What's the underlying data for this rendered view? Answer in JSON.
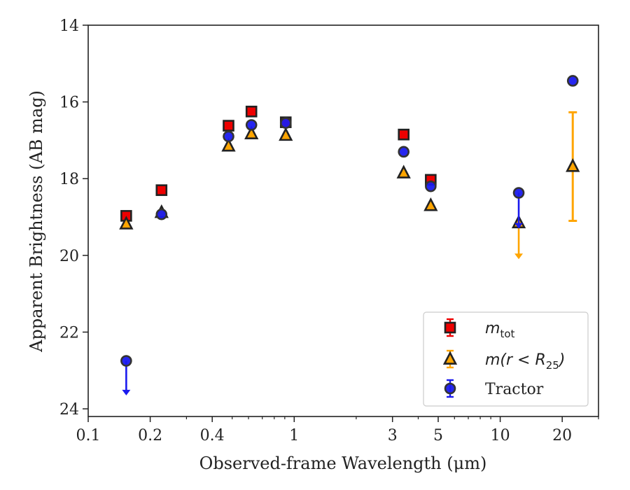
{
  "chart_data": {
    "type": "scatter",
    "title": "",
    "xlabel": "Observed-frame Wavelength (μm)",
    "ylabel": "Apparent Brightness (AB mag)",
    "xscale": "log",
    "xlim": [
      0.1,
      30
    ],
    "ylim": [
      24.2,
      14
    ],
    "y_inverted": true,
    "x_ticks": [
      0.1,
      0.2,
      0.4,
      1,
      3,
      5,
      10,
      20
    ],
    "x_tick_labels": [
      "0.1",
      "0.2",
      "0.4",
      "1",
      "3",
      "5",
      "10",
      "20"
    ],
    "y_ticks": [
      14,
      16,
      18,
      20,
      22,
      24
    ],
    "y_tick_labels": [
      "14",
      "16",
      "18",
      "20",
      "22",
      "24"
    ],
    "grid": false,
    "legend_position": "lower-right",
    "series": [
      {
        "name": "m_tot",
        "label_main": "m",
        "label_sub": "tot",
        "marker": "square",
        "color": "#ee0000",
        "edge_color": "#222222",
        "points": [
          {
            "x": 0.153,
            "y": 18.97
          },
          {
            "x": 0.227,
            "y": 18.3
          },
          {
            "x": 0.48,
            "y": 16.62
          },
          {
            "x": 0.62,
            "y": 16.25
          },
          {
            "x": 0.91,
            "y": 16.53
          },
          {
            "x": 3.4,
            "y": 16.85
          },
          {
            "x": 4.6,
            "y": 18.03
          }
        ]
      },
      {
        "name": "m(r < R25)",
        "label_main": "m(r < R",
        "label_sub": "25",
        "label_tail": ")",
        "marker": "triangle",
        "color": "#ffa500",
        "edge_color": "#222222",
        "points": [
          {
            "x": 0.153,
            "y": 19.18
          },
          {
            "x": 0.227,
            "y": 18.88
          },
          {
            "x": 0.48,
            "y": 17.15
          },
          {
            "x": 0.62,
            "y": 16.83
          },
          {
            "x": 0.91,
            "y": 16.87
          },
          {
            "x": 3.4,
            "y": 17.85
          },
          {
            "x": 4.6,
            "y": 18.7
          },
          {
            "x": 12.3,
            "y": 19.15,
            "upper_limit_to": 20.1
          },
          {
            "x": 22.5,
            "y": 17.68,
            "err_low": 16.27,
            "err_high": 19.1
          }
        ]
      },
      {
        "name": "Tractor",
        "label_main": "Tractor",
        "marker": "circle",
        "color": "#1a1aee",
        "edge_color": "#333333",
        "points": [
          {
            "x": 0.153,
            "y": 22.75,
            "upper_limit_to": 23.65
          },
          {
            "x": 0.227,
            "y": 18.93
          },
          {
            "x": 0.48,
            "y": 16.9
          },
          {
            "x": 0.62,
            "y": 16.6
          },
          {
            "x": 0.91,
            "y": 16.55
          },
          {
            "x": 3.4,
            "y": 17.3
          },
          {
            "x": 4.6,
            "y": 18.2
          },
          {
            "x": 12.3,
            "y": 18.37,
            "upper_limit_to": 19.3
          },
          {
            "x": 22.5,
            "y": 15.45
          }
        ]
      }
    ]
  }
}
